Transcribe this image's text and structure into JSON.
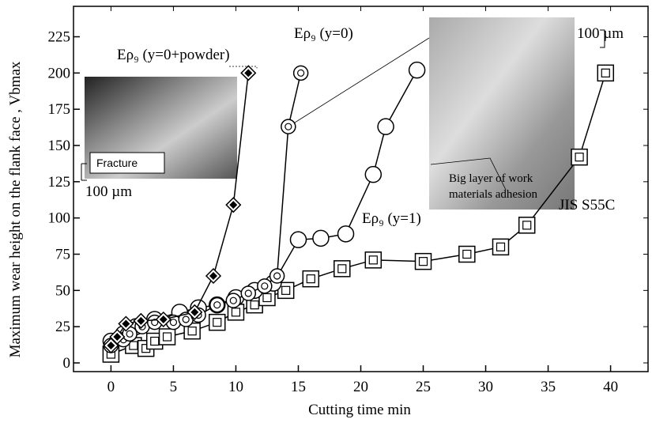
{
  "chart_data": {
    "type": "line",
    "xlabel": "Cutting time      min",
    "ylabel": "Maximum  wear height on the flank face , Vbmax",
    "xlim": [
      -3,
      43
    ],
    "ylim": [
      -6,
      246
    ],
    "xticks": [
      0,
      5,
      10,
      15,
      20,
      25,
      30,
      35,
      40
    ],
    "yticks": [
      0,
      25,
      50,
      75,
      100,
      125,
      150,
      175,
      200,
      225
    ],
    "series": [
      {
        "name": "Eρ₉  (y=0+powder)",
        "color": "#000000",
        "marker": "diamond",
        "x": [
          0,
          0.5,
          1.2,
          2.4,
          4.2,
          6.7,
          8.2,
          9.8,
          11
        ],
        "values": [
          12,
          18,
          27,
          29,
          30,
          35,
          60,
          109,
          200
        ]
      },
      {
        "name": "Eρ₉  (y=0)",
        "color": "#000000",
        "marker": "dotted-circle",
        "x": [
          0,
          1,
          1.5,
          2.5,
          3.5,
          5,
          6,
          7,
          8.5,
          9.8,
          11,
          12.3,
          13.3,
          14.2,
          15.2
        ],
        "values": [
          12,
          16,
          20,
          25,
          28,
          28,
          30,
          33,
          40,
          43,
          48,
          53,
          60,
          163,
          200
        ]
      },
      {
        "name": "Eρ₉  (y=1)",
        "color": "#000000",
        "marker": "circle",
        "x": [
          0,
          1,
          2,
          3.5,
          5.5,
          7,
          8.5,
          10,
          11.5,
          13,
          15,
          16.8,
          18.8,
          21,
          22,
          24.5
        ],
        "values": [
          15,
          20,
          25,
          30,
          35,
          38,
          40,
          45,
          50,
          55,
          85,
          86,
          89,
          130,
          163,
          202
        ]
      },
      {
        "name": "JIS S55C",
        "color": "#000000",
        "marker": "square",
        "x": [
          0,
          1.8,
          2.8,
          3.5,
          4.5,
          6.5,
          8.5,
          10,
          11.5,
          12.5,
          14,
          16,
          18.5,
          21,
          25,
          28.5,
          31.2,
          33.3,
          37.5,
          39.6
        ],
        "values": [
          6,
          12,
          10,
          15,
          18,
          22,
          28,
          35,
          40,
          45,
          50,
          58,
          65,
          71,
          70,
          75,
          80,
          95,
          142,
          200
        ]
      }
    ],
    "annotations": [
      "Fracture",
      "100 µm",
      "100 µm",
      "Big layer of work",
      "materials adhesion"
    ]
  }
}
